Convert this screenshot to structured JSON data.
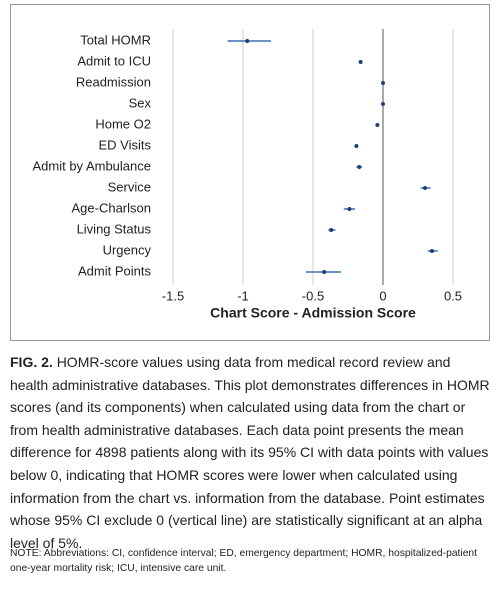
{
  "chart_data": {
    "type": "forest",
    "xlabel": "Chart Score - Admission Score",
    "categories": [
      "Total HOMR",
      "Admit to ICU",
      "Readmission",
      "Sex",
      "Home O2",
      "ED Visits",
      "Admit by Ambulance",
      "Service",
      "Age-Charlson",
      "Living Status",
      "Urgency",
      "Admit Points"
    ],
    "values": [
      -0.97,
      -0.16,
      0.0,
      0.0,
      -0.04,
      -0.19,
      -0.17,
      0.3,
      -0.24,
      -0.37,
      0.35,
      -0.42
    ],
    "lower": [
      -1.11,
      -0.17,
      -0.005,
      -0.005,
      -0.05,
      -0.2,
      -0.19,
      0.27,
      -0.28,
      -0.39,
      0.32,
      -0.55
    ],
    "upper": [
      -0.8,
      -0.15,
      0.005,
      0.005,
      -0.03,
      -0.18,
      -0.15,
      0.34,
      -0.2,
      -0.34,
      0.39,
      -0.3
    ],
    "color": "#1f3f7a",
    "ci_color": "#3a70b3",
    "xlim": [
      -1.5,
      0.5
    ],
    "xticks": [
      -1.5,
      -1.0,
      -0.5,
      0.0,
      0.5
    ],
    "grid": true
  },
  "caption": {
    "label": "FIG. 2.",
    "text": "HOMR-score values using data from medical record review and health administrative databases. This plot demonstrates differences in HOMR scores (and its components) when calculated using data from the chart or from health administrative databases. Each data point presents the mean difference for 4898 patients along with its 95% CI with data points with values below 0, indicating that HOMR scores were lower when calculated using information from the chart vs. information from the database. Point estimates whose 95% CI exclude 0 (vertical line) are statistically significant at an alpha level of 5%."
  },
  "note": "NOTE: Abbreviations: CI, confidence interval; ED, emergency department; HOMR, hospitalized-patient one-year mortality risk; ICU, intensive care unit."
}
